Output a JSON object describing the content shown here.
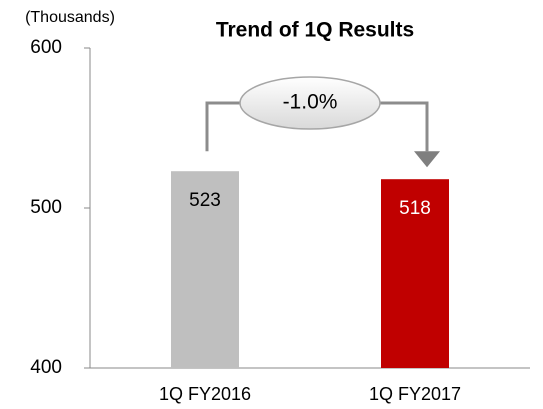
{
  "chart_data": {
    "type": "bar",
    "title": "Trend of 1Q Results",
    "unit_label": "(Thousands)",
    "categories": [
      "1Q FY2016",
      "1Q FY2017"
    ],
    "values": [
      523,
      518
    ],
    "colors": [
      "#bfbfbf",
      "#c00000"
    ],
    "ylim": [
      400,
      600
    ],
    "yticks": [
      400,
      500,
      600
    ],
    "grid": false,
    "annotation": "-1.0%"
  }
}
